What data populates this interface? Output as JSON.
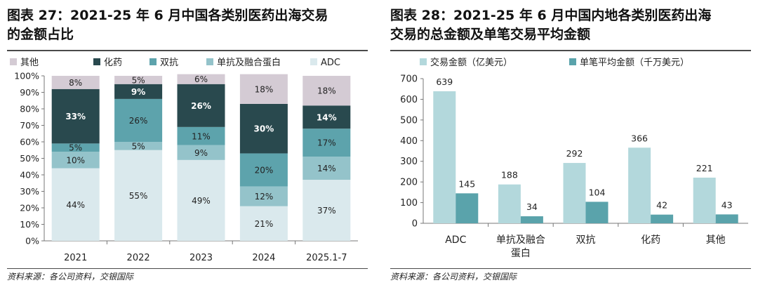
{
  "page": {
    "left": {
      "title_line1": "图表 27：2021-25 年 6 月中国各类别医药出海交易",
      "title_line2": "的金额占比",
      "source": "资料来源：各公司资料，交银国际"
    },
    "right": {
      "title_line1": "图表 28：2021-25 年 6 月中国内地各类别医药出海",
      "title_line2": "交易的总金额及单笔交易平均金额",
      "source": "资料来源：各公司资料，交银国际"
    }
  },
  "colors": {
    "other": "#d4cbd4",
    "chem": "#29494e",
    "bispecific": "#5da3ac",
    "mab": "#94c3ca",
    "adc": "#dae9ed",
    "total": "#b3d8dc",
    "avg": "#5aa3ab"
  },
  "chart_data": [
    {
      "type": "bar",
      "stacked": true,
      "title": "图表 27：2021-25 年 6 月中国各类别医药出海交易的金额占比",
      "categories": [
        "2021",
        "2022",
        "2023",
        "2024",
        "2025.1-7"
      ],
      "series": [
        {
          "name": "ADC",
          "values": [
            44,
            55,
            49,
            21,
            37
          ],
          "labels": [
            "44%",
            "55%",
            "49%",
            "21%",
            "37%"
          ],
          "color_key": "adc",
          "label_color": "#222"
        },
        {
          "name": "单抗及融合蛋白",
          "values": [
            10,
            5,
            9,
            12,
            14
          ],
          "labels": [
            "10%",
            "5%",
            "9%",
            "12%",
            "14%"
          ],
          "color_key": "mab",
          "label_color": "#222"
        },
        {
          "name": "双抗",
          "values": [
            5,
            26,
            11,
            20,
            17
          ],
          "labels": [
            "5%",
            "26%",
            "11%",
            "20%",
            "17%"
          ],
          "color_key": "bispecific",
          "label_color": "#222"
        },
        {
          "name": "化药",
          "values": [
            33,
            9,
            26,
            30,
            14
          ],
          "labels": [
            "33%",
            "9%",
            "26%",
            "30%",
            "14%"
          ],
          "color_key": "chem",
          "label_color": "#ffffff"
        },
        {
          "name": "其他",
          "values": [
            8,
            5,
            6,
            18,
            18
          ],
          "labels": [
            "8%",
            "5%",
            "6%",
            "18%",
            "18%"
          ],
          "color_key": "other",
          "label_color": "#222"
        }
      ],
      "legend_order": [
        "其他",
        "化药",
        "双抗",
        "单抗及融合蛋白",
        "ADC"
      ],
      "ylim": [
        0,
        100
      ],
      "yticks": [
        0,
        10,
        20,
        30,
        40,
        50,
        60,
        70,
        80,
        90,
        100
      ],
      "yticklabels": [
        "0%",
        "10%",
        "20%",
        "30%",
        "40%",
        "50%",
        "60%",
        "70%",
        "80%",
        "90%",
        "100%"
      ],
      "xlabel": "",
      "ylabel": "",
      "grid": false,
      "legend_position": "top"
    },
    {
      "type": "bar",
      "stacked": false,
      "title": "图表 28：2021-25 年 6 月中国内地各类别医药出海交易的总金额及单笔交易平均金额",
      "categories": [
        "ADC",
        "单抗及融合蛋白",
        "双抗",
        "化药",
        "其他"
      ],
      "category_lines": [
        [
          "ADC"
        ],
        [
          "单抗及融合",
          "蛋白"
        ],
        [
          "双抗"
        ],
        [
          "化药"
        ],
        [
          "其他"
        ]
      ],
      "series": [
        {
          "name": "交易金额（亿美元）",
          "values": [
            639,
            188,
            292,
            366,
            221
          ],
          "labels": [
            "639",
            "188",
            "292",
            "366",
            "221"
          ],
          "color_key": "total"
        },
        {
          "name": "单笔平均金额（千万美元）",
          "values": [
            145,
            34,
            104,
            42,
            43
          ],
          "labels": [
            "145",
            "34",
            "104",
            "42",
            "43"
          ],
          "color_key": "avg"
        }
      ],
      "ylim": [
        0,
        700
      ],
      "yticks": [
        0,
        100,
        200,
        300,
        400,
        500,
        600,
        700
      ],
      "yticklabels": [
        "0",
        "100",
        "200",
        "300",
        "400",
        "500",
        "600",
        "700"
      ],
      "xlabel": "",
      "ylabel": "",
      "grid": false,
      "legend_position": "top"
    }
  ]
}
